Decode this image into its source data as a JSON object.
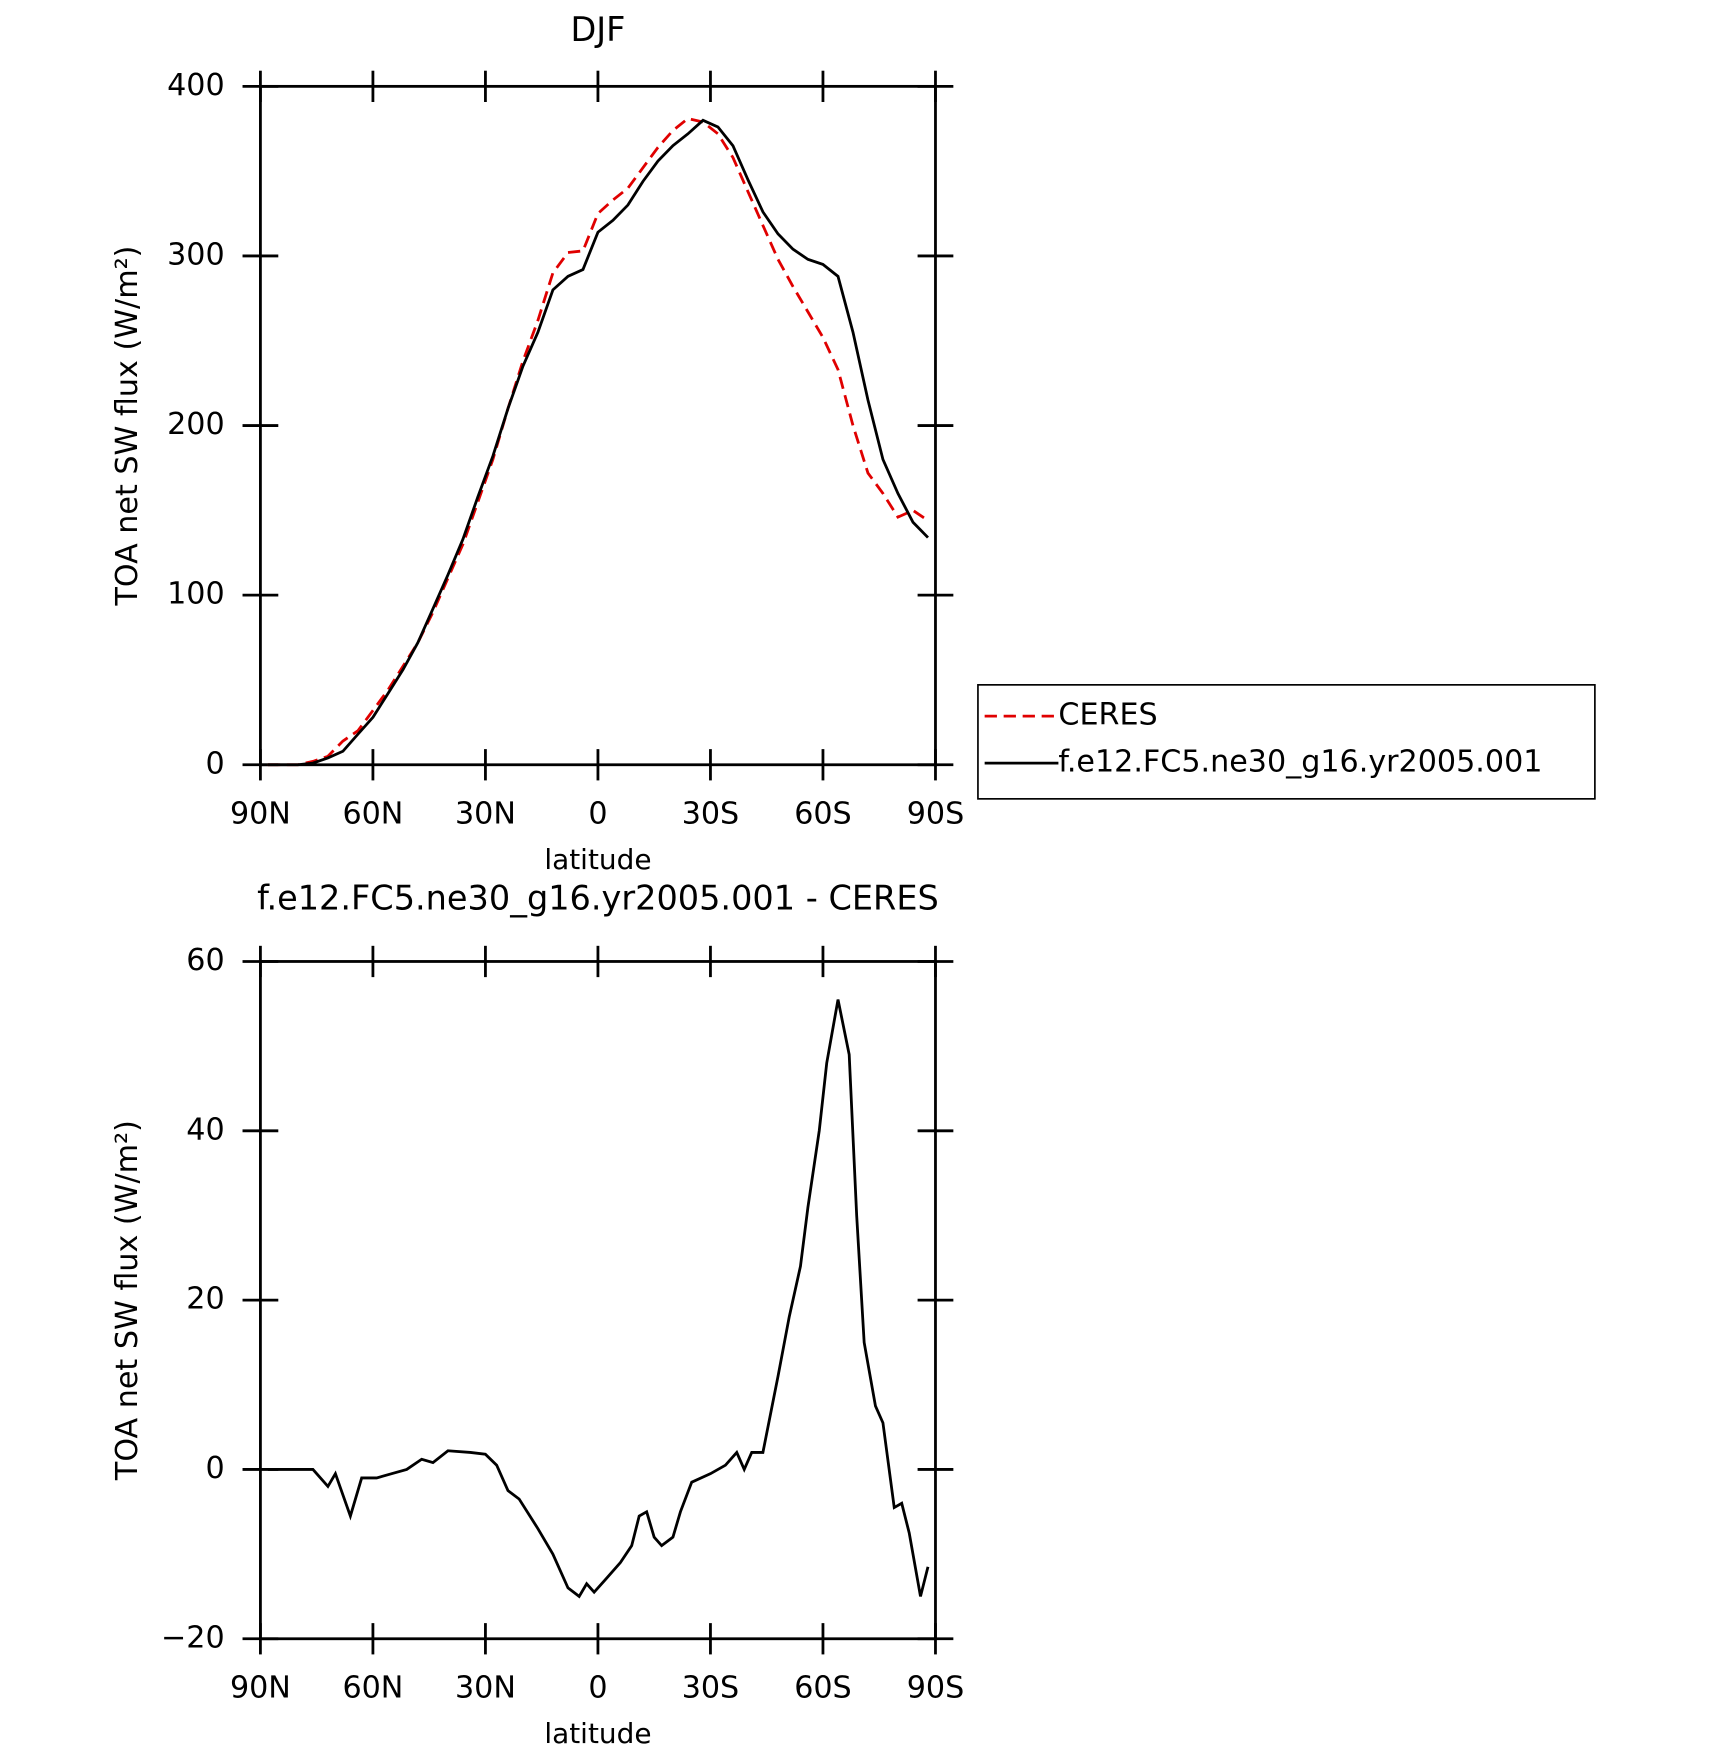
{
  "chart_data": [
    {
      "type": "line",
      "title": "DJF",
      "xlabel": "latitude",
      "ylabel": "TOA net SW flux (W/m²)",
      "xlim": [
        90,
        -90
      ],
      "ylim": [
        0,
        400
      ],
      "xticks": [
        {
          "value": 90,
          "label": "90N"
        },
        {
          "value": 60,
          "label": "60N"
        },
        {
          "value": 30,
          "label": "30N"
        },
        0,
        {
          "value": -30,
          "label": "30S"
        },
        {
          "value": -60,
          "label": "60S"
        },
        {
          "value": -90,
          "label": "90S"
        }
      ],
      "yticks": [
        0,
        100,
        200,
        300,
        400
      ],
      "legend": "right",
      "x": [
        88,
        84,
        80,
        76,
        72,
        68,
        64,
        60,
        56,
        52,
        48,
        44,
        40,
        36,
        32,
        28,
        24,
        20,
        16,
        12,
        8,
        4,
        0,
        -4,
        -8,
        -12,
        -16,
        -20,
        -24,
        -28,
        -32,
        -36,
        -40,
        -44,
        -48,
        -52,
        -56,
        -60,
        -64,
        -68,
        -72,
        -76,
        -80,
        -84,
        -88
      ],
      "series": [
        {
          "name": "CERES",
          "color": "#e00000",
          "linestyle": "dashed",
          "values": [
            0,
            0,
            0,
            2,
            5,
            14,
            20,
            32,
            44,
            58,
            72,
            90,
            110,
            130,
            155,
            180,
            210,
            238,
            262,
            290,
            302,
            303,
            325,
            333,
            340,
            352,
            364,
            374,
            381,
            379,
            372,
            358,
            338,
            318,
            298,
            282,
            267,
            252,
            233,
            200,
            172,
            160,
            146,
            150,
            144
          ]
        },
        {
          "name": "f.e12.FC5.ne30_g16.yr2005.001",
          "color": "#000000",
          "linestyle": "solid",
          "values": [
            0,
            0,
            0,
            1,
            4,
            8,
            18,
            28,
            42,
            56,
            72,
            92,
            112,
            133,
            158,
            182,
            210,
            235,
            255,
            280,
            288,
            292,
            314,
            321,
            330,
            344,
            356,
            365,
            372,
            380,
            376,
            365,
            345,
            326,
            313,
            304,
            298,
            295,
            288,
            255,
            215,
            180,
            160,
            143,
            134
          ]
        }
      ]
    },
    {
      "type": "line",
      "title": "f.e12.FC5.ne30_g16.yr2005.001 - CERES",
      "xlabel": "latitude",
      "ylabel": "TOA net SW flux (W/m²)",
      "xlim": [
        90,
        -90
      ],
      "ylim": [
        -20,
        60
      ],
      "xticks": [
        {
          "value": 90,
          "label": "90N"
        },
        {
          "value": 60,
          "label": "60N"
        },
        {
          "value": 30,
          "label": "30N"
        },
        0,
        {
          "value": -30,
          "label": "30S"
        },
        {
          "value": -60,
          "label": "60S"
        },
        {
          "value": -90,
          "label": "90S"
        }
      ],
      "yticks": [
        {
          "value": -20,
          "label": "−20"
        },
        0,
        20,
        40,
        60
      ],
      "x": [
        88,
        84,
        80,
        76,
        72,
        70,
        66,
        63,
        59,
        55,
        51,
        47,
        44,
        40,
        34,
        30,
        27,
        24,
        21,
        16,
        12,
        8,
        5,
        3,
        1,
        -2,
        -6,
        -9,
        -11,
        -13,
        -15,
        -17,
        -20,
        -22,
        -25,
        -30,
        -34,
        -37,
        -39,
        -41,
        -44,
        -48,
        -51,
        -54,
        -56,
        -59,
        -61,
        -64,
        -67,
        -69,
        -71,
        -74,
        -76,
        -79,
        -81,
        -83,
        -86,
        -88
      ],
      "series": [
        {
          "color": "#000000",
          "values": [
            0,
            0,
            0,
            0,
            -2,
            -0.5,
            -5.5,
            -1,
            -1,
            -0.5,
            0,
            1.2,
            0.8,
            2.2,
            2,
            1.8,
            0.5,
            -2.5,
            -3.5,
            -7,
            -10,
            -14,
            -15,
            -13.5,
            -14.5,
            -13,
            -11,
            -9,
            -5.5,
            -5,
            -8,
            -9,
            -8,
            -5,
            -1.5,
            -0.5,
            0.5,
            2,
            0,
            2,
            2,
            11,
            18,
            24,
            31,
            40,
            48,
            55.5,
            49,
            30,
            15,
            7.5,
            5.5,
            -4.5,
            -4,
            -7.5,
            -15,
            -11.5
          ]
        }
      ]
    }
  ]
}
